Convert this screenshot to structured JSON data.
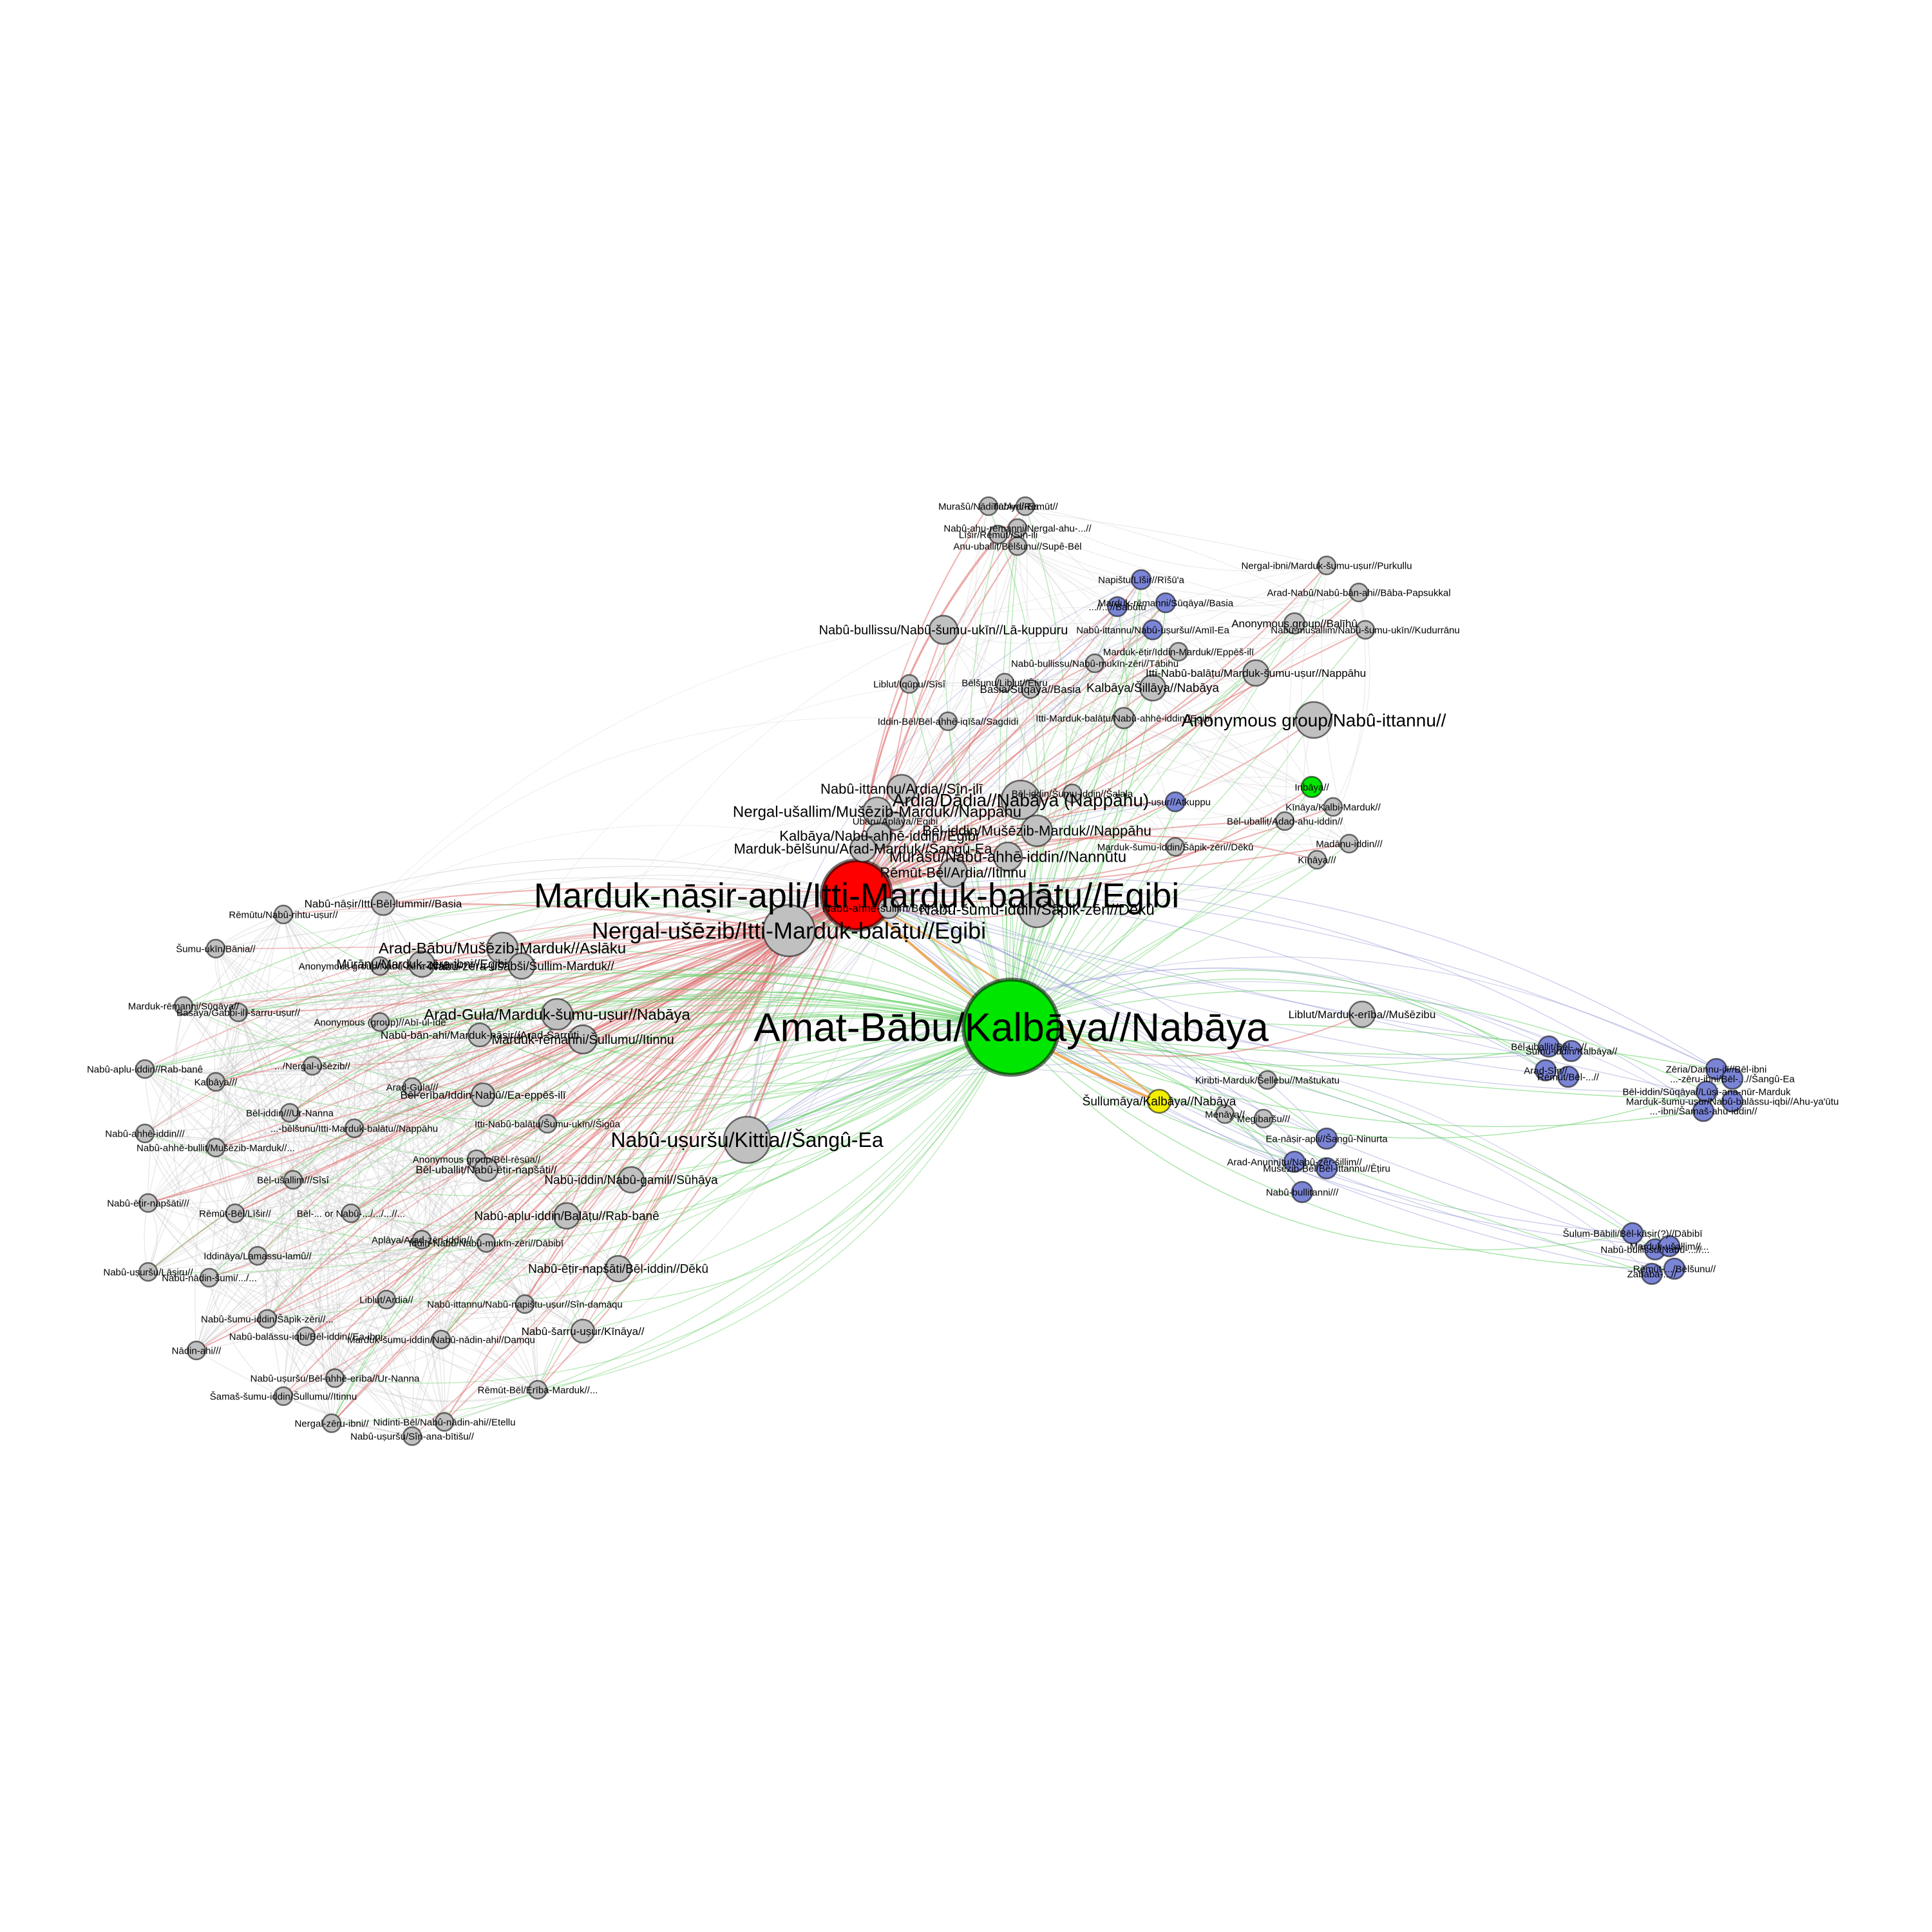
{
  "colors": {
    "gray": "#c0c0c0",
    "red": "#ff0000",
    "green": "#00e600",
    "blue": "#7b85d6",
    "yellow": "#f2ee00",
    "edge_gray": "#c8c8c8",
    "edge_red": "#e06464",
    "edge_green": "#5fcf5f",
    "edge_blue": "#8a8fd0",
    "edge_orange": "#f0a040"
  },
  "hubs": [
    {
      "id": "A",
      "label": "Marduk-nāṣir-apli/Itti-Marduk-balāṭu//Egibi",
      "color": "red"
    },
    {
      "id": "B",
      "label": "Amat-Bābu/Kalbāya//Nabāya",
      "color": "green"
    },
    {
      "id": "C",
      "label": "Nergal-ušēzib/Itti-Marduk-balāṭu//Egibi",
      "color": "gray"
    },
    {
      "id": "D",
      "label": "Nabû-uṣuršu/Kittia//Šangû-Ea",
      "color": "gray"
    }
  ],
  "nodes": [
    {
      "id": "n1",
      "label": "Murašû/Nādinu/Ardi-Ea",
      "color": "gray"
    },
    {
      "id": "n2",
      "label": "Tābiya/Rēmūt//",
      "color": "gray"
    },
    {
      "id": "n3",
      "label": "Nabû-ahu-rēmanni/Nergal-ahu-...//",
      "color": "gray"
    },
    {
      "id": "n4",
      "label": "Līšir/Rēmūt//Sîn-ili",
      "color": "gray"
    },
    {
      "id": "n5",
      "label": "Anu-uballiṭ/Bēlšunu//Supê-Bēl",
      "color": "gray"
    },
    {
      "id": "n6",
      "label": "Nergal-ibni/Marduk-šumu-uṣur//Purkullu",
      "color": "gray"
    },
    {
      "id": "n7",
      "label": "Napištu/Līšir//Rīšū'a",
      "color": "blue"
    },
    {
      "id": "n8",
      "label": "Arad-Nabû/Nabû-bān-ahi//Bāba-Papsukkal",
      "color": "gray"
    },
    {
      "id": "n9",
      "label": "Marduk-rēmanni/Sūqāya//Basia",
      "color": "blue"
    },
    {
      "id": "n10",
      "label": "...//...//Babutu",
      "color": "blue"
    },
    {
      "id": "n11",
      "label": "Anonymous group//Balīhû",
      "color": "gray"
    },
    {
      "id": "n12",
      "label": "Nabû-bullissu/Nabû-šumu-ukīn//Lā-kuppuru",
      "color": "gray"
    },
    {
      "id": "n13",
      "label": "Nabû-ittannu/Nabû-uṣuršu//Amīl-Ea",
      "color": "blue"
    },
    {
      "id": "n14",
      "label": "Nabû-mušallim/Nabû-šumu-ukīn//Kudurrānu",
      "color": "gray"
    },
    {
      "id": "n15",
      "label": "Marduk-ēṭir/Iddin-Marduk//Eppēš-ilī",
      "color": "gray"
    },
    {
      "id": "n16",
      "label": "Nabû-bullissu/Nabû-mukīn-zēri//Tābihu",
      "color": "gray"
    },
    {
      "id": "n17",
      "label": "Itti-Nabû-balāṭu/Marduk-šumu-uṣur//Nappāhu",
      "color": "gray"
    },
    {
      "id": "n18",
      "label": "Liblut/Iqūpu//Sîsî",
      "color": "gray"
    },
    {
      "id": "n19",
      "label": "Bēlšunu/Liblut//Ēṭiru",
      "color": "gray"
    },
    {
      "id": "n20",
      "label": "Basia/Sūqāya//Basia",
      "color": "gray"
    },
    {
      "id": "n21",
      "label": "Kalbāya/Šillāya//Nabāya",
      "color": "gray"
    },
    {
      "id": "n22",
      "label": "Iddin-Bēl/Bēl-ahhē-iqīša//Sagdidi",
      "color": "gray"
    },
    {
      "id": "n23",
      "label": "Itti-Marduk-balāṭu/Nabû-ahhē-iddin//Egibi",
      "color": "gray"
    },
    {
      "id": "n24",
      "label": "Anonymous group/Nabû-ittannu//",
      "color": "gray"
    },
    {
      "id": "n25",
      "label": "Nabû-ittannu/Ardia//Sîn-ilī",
      "color": "gray"
    },
    {
      "id": "n26",
      "label": "Ardia/Dādia//Nabāya (Nappāhu)",
      "color": "gray"
    },
    {
      "id": "n27",
      "label": "Bēl-iddin/Šumu-iddin//Šalala",
      "color": "gray"
    },
    {
      "id": "n28",
      "label": "...-uṣur//Atkuppu",
      "color": "blue"
    },
    {
      "id": "n29",
      "label": "Inbāya//",
      "color": "green"
    },
    {
      "id": "n30",
      "label": "Kīnāya/Kalbi-Marduk//",
      "color": "gray"
    },
    {
      "id": "n31",
      "label": "Nergal-ušallim/Mušēzib-Marduk//Nappāhu",
      "color": "gray"
    },
    {
      "id": "n32",
      "label": "Ubāru/Aplāya//Egibi",
      "color": "gray"
    },
    {
      "id": "n33",
      "label": "Bēl-uballiṭ/Adad-ahu-iddin//",
      "color": "gray"
    },
    {
      "id": "n34",
      "label": "Bēl-iddin/Mušēzib-Marduk//Nappāhu",
      "color": "gray"
    },
    {
      "id": "n35",
      "label": "Kalbāya/Nabû-ahhē-iddin//Egibi",
      "color": "gray"
    },
    {
      "id": "n36",
      "label": "Marduk-šumu-iddin/Šāpik-zēri//Dēkû",
      "color": "gray"
    },
    {
      "id": "n37",
      "label": "Madānu-iddin///",
      "color": "gray"
    },
    {
      "id": "n38",
      "label": "Marduk-bēlšunu/Arad-Marduk//Šangû-Ea",
      "color": "gray"
    },
    {
      "id": "n39",
      "label": "Murašû/Nabû-ahhē-iddin//Nannūtu",
      "color": "gray"
    },
    {
      "id": "n40",
      "label": "Kīnāya///",
      "color": "gray"
    },
    {
      "id": "n41",
      "label": "Rēmūt-Bēl/Ardia//Itinnu",
      "color": "gray"
    },
    {
      "id": "n42",
      "label": "Nabû-šumu-iddin/Šāpik-zēri//Dēkû",
      "color": "gray"
    },
    {
      "id": "n43",
      "label": "Nabû-nāṣir/Itti-Bēl-lummir//Basia",
      "color": "gray"
    },
    {
      "id": "n44",
      "label": "Nabû-ahhē-šullim/Bēl-...//...",
      "color": "gray"
    },
    {
      "id": "n45",
      "label": "Rēmūtu/Nabû-rihtu-uṣur//",
      "color": "gray"
    },
    {
      "id": "n46",
      "label": "Šumu-ukīn/Bānia//",
      "color": "gray"
    },
    {
      "id": "n47",
      "label": "Arad-Bābu/Mušēzib-Marduk//Aslāku",
      "color": "gray"
    },
    {
      "id": "n48",
      "label": "Mūrānu/Marduk-zēra-ibni//Egibi",
      "color": "gray"
    },
    {
      "id": "n49",
      "label": "Nabû-zēra-ušabši/Šullim-Marduk//",
      "color": "gray"
    },
    {
      "id": "n50",
      "label": "Anonymous group/Nabû-zēra-ušabši//",
      "color": "gray"
    },
    {
      "id": "n51",
      "label": "Marduk-rēmanni/Sūqāya//",
      "color": "gray"
    },
    {
      "id": "n52",
      "label": "Basāya/Gabbi-ilī-šarru-uṣur//",
      "color": "gray"
    },
    {
      "id": "n53",
      "label": "Anonymous (group)//Abī-ul-īde",
      "color": "gray"
    },
    {
      "id": "n54",
      "label": "Arad-Gula/Marduk-šumu-uṣur//Nabāya",
      "color": "gray"
    },
    {
      "id": "n55",
      "label": "Nabû-bān-ahi/Marduk-nāṣir//Arad-Šarrūti",
      "color": "gray"
    },
    {
      "id": "n56",
      "label": "Marduk-rēmanni/Šullumu//Itinnu",
      "color": "gray"
    },
    {
      "id": "n57",
      "label": "Nabû-aplu-iddin//Rab-banê",
      "color": "gray"
    },
    {
      "id": "n58",
      "label": "Kalbāya///",
      "color": "gray"
    },
    {
      "id": "n59",
      "label": ".../Nergal-ušēzib//",
      "color": "gray"
    },
    {
      "id": "n60",
      "label": "Arad-Gula///",
      "color": "gray"
    },
    {
      "id": "n61",
      "label": "Bēl-erība/Iddin-Nabû//Ea-eppēš-ilī",
      "color": "gray"
    },
    {
      "id": "n62",
      "label": "Bēl-iddin///Ur-Nanna",
      "color": "gray"
    },
    {
      "id": "n63",
      "label": "...-bēlšunu/Itti-Marduk-balāṭu//Nappāhu",
      "color": "gray"
    },
    {
      "id": "n64",
      "label": "Itti-Nabû-balāṭu/Šumu-ukīn//Šigûa",
      "color": "gray"
    },
    {
      "id": "n65",
      "label": "Nabû-ahhē-iddin///",
      "color": "gray"
    },
    {
      "id": "n66",
      "label": "Nabû-ahhē-bulliṭ/Mušēzib-Marduk//...",
      "color": "gray"
    },
    {
      "id": "n67",
      "label": "Anonymous group/Bēl-rēsūa//",
      "color": "gray"
    },
    {
      "id": "n68",
      "label": "Bēl-uballiṭ/Nabû-ēṭir-napšāti//",
      "color": "gray"
    },
    {
      "id": "n69",
      "label": "Bēl-ušallim///Sîsî",
      "color": "gray"
    },
    {
      "id": "n70",
      "label": "Nabû-iddin/Nabû-gamil//Sūhāya",
      "color": "gray"
    },
    {
      "id": "n71",
      "label": "Nabû-ēṭir-napšāti///",
      "color": "gray"
    },
    {
      "id": "n72",
      "label": "Rēmūt-Bēl/Līšir//",
      "color": "gray"
    },
    {
      "id": "n73",
      "label": "Bēl-... or Nabû-.../.../...//...",
      "color": "gray"
    },
    {
      "id": "n74",
      "label": "Nabû-aplu-iddin/Balāṭu//Rab-banê",
      "color": "gray"
    },
    {
      "id": "n75",
      "label": "Aplāya/Arad-zēri-iddin//",
      "color": "gray"
    },
    {
      "id": "n76",
      "label": "Iddin-Nabû/Nabû-mukīn-zēri//Dābibī",
      "color": "gray"
    },
    {
      "id": "n77",
      "label": "Iddināya/Lamassu-lamû//",
      "color": "gray"
    },
    {
      "id": "n78",
      "label": "Nabû-uṣuršu/Lāṣiru//",
      "color": "gray"
    },
    {
      "id": "n79",
      "label": "Nabû-nādin-šumi/.../...",
      "color": "gray"
    },
    {
      "id": "n80",
      "label": "Nabû-ēṭir-napšāti/Bēl-iddin//Dēkû",
      "color": "gray"
    },
    {
      "id": "n81",
      "label": "Liblut/Ardia//",
      "color": "gray"
    },
    {
      "id": "n82",
      "label": "Nabû-ittannu/Nabû-napištu-uṣur//Sîn-damāqu",
      "color": "gray"
    },
    {
      "id": "n83",
      "label": "Nabû-šumu-iddin/Šāpik-zēri//...",
      "color": "gray"
    },
    {
      "id": "n84",
      "label": "Nabû-balāssu-iqbi/Bēl-iddin//Ea-ibni",
      "color": "gray"
    },
    {
      "id": "n85",
      "label": "Marduk-šumu-iddin/Nabû-nādin-ahi//Damqu",
      "color": "gray"
    },
    {
      "id": "n86",
      "label": "Nabû-šarru-uṣur/Kīnāya//",
      "color": "gray"
    },
    {
      "id": "n87",
      "label": "Nādin-ahi///",
      "color": "gray"
    },
    {
      "id": "n88",
      "label": "Nabû-uṣuršu/Bēl-ahhē-erība//Ur-Nanna",
      "color": "gray"
    },
    {
      "id": "n89",
      "label": "Rēmūt-Bēl/Erība-Marduk//...",
      "color": "gray"
    },
    {
      "id": "n90",
      "label": "Šamaš-šumu-iddin/Šullumu//Itinnu",
      "color": "gray"
    },
    {
      "id": "n91",
      "label": "Nergal-zēru-ibni//",
      "color": "gray"
    },
    {
      "id": "n92",
      "label": "Nidinti-Bēl/Nabû-nādin-ahi//Etellu",
      "color": "gray"
    },
    {
      "id": "n93",
      "label": "Nabû-uṣuršu/Sîn-ana-bītišu//",
      "color": "gray"
    },
    {
      "id": "n94",
      "label": "Liblut/Marduk-erība//Mušēzibu",
      "color": "gray"
    },
    {
      "id": "n95",
      "label": "Kiribti-Marduk/Šellebu//Maštukatu",
      "color": "gray"
    },
    {
      "id": "n96",
      "label": "Šullumāya/Kalbāya//Nabāya",
      "color": "yellow"
    },
    {
      "id": "n97",
      "label": "Menāya//",
      "color": "gray"
    },
    {
      "id": "n98",
      "label": "Megibaršu///",
      "color": "gray"
    },
    {
      "id": "n99",
      "label": "Ea-nāṣir-apli//Šangû-Ninurta",
      "color": "blue"
    },
    {
      "id": "n100",
      "label": "Arad-Anunnītu/Nabû-zēr-šillim//",
      "color": "blue"
    },
    {
      "id": "n101",
      "label": "Mušēzib-Bēl/Bēl-ittannu//Ēṭiru",
      "color": "blue"
    },
    {
      "id": "n102",
      "label": "Nabû-bullitanni///",
      "color": "blue"
    },
    {
      "id": "n103",
      "label": "Bēl-uballiṭ/Bēl-...//",
      "color": "blue"
    },
    {
      "id": "n104",
      "label": "Šumu-iddin/Kalbāya//",
      "color": "blue"
    },
    {
      "id": "n105",
      "label": "Arad-Sîn//",
      "color": "blue"
    },
    {
      "id": "n106",
      "label": "Rēmūt/Bēl-...//",
      "color": "blue"
    },
    {
      "id": "n107",
      "label": "Zēria/Dannu-ilī//Bēl-ibni",
      "color": "blue"
    },
    {
      "id": "n108",
      "label": "...-zēru-ibni/Bēl-...//Šangû-Ea",
      "color": "blue"
    },
    {
      "id": "n109",
      "label": "Bēl-iddin/Sūqāya//Lūṣi-ana-nūr-Marduk",
      "color": "blue"
    },
    {
      "id": "n110",
      "label": "Marduk-šumu-uṣur/Nabû-balāssu-iqbi//Ahu-ya'ūtu",
      "color": "blue"
    },
    {
      "id": "n111",
      "label": "...-ibni/Šamaš-ahu-iddin//",
      "color": "blue"
    },
    {
      "id": "n112",
      "label": "Šulum-Bābili/Bēl-kāṣir(?)//Dābibī",
      "color": "blue"
    },
    {
      "id": "n113",
      "label": "Nabû-bullissu/Nabû-...//...",
      "color": "blue"
    },
    {
      "id": "n114",
      "label": "Marduk-ušallim//...",
      "color": "blue"
    },
    {
      "id": "n115",
      "label": "Rēmūt-.../Bēlšunu//",
      "color": "blue"
    },
    {
      "id": "n116",
      "label": "Zababa-...//",
      "color": "blue"
    }
  ]
}
